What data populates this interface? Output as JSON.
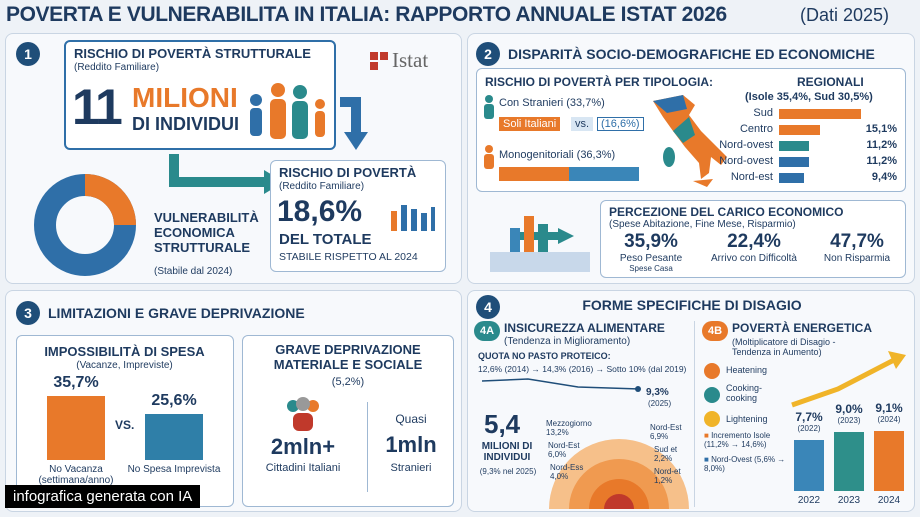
{
  "header": {
    "title": "POVERTA E VULNERABILITA IN ITALIA: RAPPORTO ANNUALE ISTAT 2026",
    "subtitle": "(Dati 2025)"
  },
  "section1": {
    "number": "1",
    "title": "RISCHIO DI POVERTÀ STRUTTURALE",
    "subtitle": "(Reddito Familiare)",
    "big_number": "11",
    "big_unit": "MILIONI",
    "big_caption": "DI INDIVIDUI",
    "logo": "Istat",
    "card": {
      "title": "RISCHIO DI POVERTÀ",
      "subtitle": "(Reddito Familiare)",
      "value": "18,6%",
      "caption": "DEL TOTALE",
      "note": "STABILE RISPETTO AL 2024"
    },
    "donut": {
      "lines": [
        "VULNERABILITÀ",
        "ECONOMICA",
        "STRUTTURALE"
      ],
      "note": "(Stabile dal 2024)"
    }
  },
  "section2": {
    "number": "2",
    "title": "DISPARITÀ SOCIO-DEMOGRAFICHE ED ECONOMICHE",
    "typology": {
      "title": "RISCHIO DI POVERTÀ PER TIPOLOGIA:",
      "stranieri": "Con Stranieri (33,7%)",
      "italiani": "Soli Italiani",
      "vs": "vs.",
      "italiani_value": "(16,6%)",
      "monogenitoriali": "Monogenitoriali (36,3%)"
    },
    "regional": {
      "title": "REGIONALI",
      "subtitle": "(Isole 35,4%, Sud 30,5%)",
      "categories": [
        "Sud",
        "Centro",
        "Nord-ovest",
        "Nord-ovest",
        "Nord-est"
      ],
      "values": [
        30.5,
        15.1,
        11.2,
        11.2,
        9.4
      ],
      "value_labels": [
        null,
        "15,1%",
        "11,2%",
        "11,2%",
        "9,4%"
      ],
      "colors": [
        "#e8792a",
        "#e8792a",
        "#2a8a8c",
        "#2f6fa8",
        "#2f6fa8"
      ]
    },
    "perception": {
      "title": "PERCEZIONE DEL CARICO ECONOMICO",
      "subtitle": "(Spese Abitazione, Fine Mese, Risparmio)",
      "items": [
        {
          "value": "35,9%",
          "label": "Peso Pesante",
          "note": "Spese Casa"
        },
        {
          "value": "22,4%",
          "label": "Arrivo con Difficoltà"
        },
        {
          "value": "47,7%",
          "label": "Non Risparmia"
        }
      ]
    }
  },
  "section3": {
    "number": "3",
    "title": "LIMITAZIONI E GRAVE DEPRIVAZIONE",
    "spending": {
      "title": "IMPOSSIBILITÀ DI SPESA",
      "subtitle": "(Vacanze, Impreviste)",
      "categories": [
        "No Vacanza (settimana/anno)",
        "No Spesa Imprevista"
      ],
      "values": [
        35.7,
        25.6
      ],
      "value_labels": [
        "35,7%",
        "25,6%"
      ],
      "colors": [
        "#e8792a",
        "#2f7fa8"
      ],
      "vs": "VS."
    },
    "deprivation": {
      "title": "GRAVE DEPRIVAZIONE MATERIALE E SOCIALE",
      "value": "(5,2%)",
      "italians_value": "2mln+",
      "italians_label": "Cittadini Italiani",
      "foreigners_prefix": "Quasi",
      "foreigners_value": "1mln",
      "foreigners_label": "Stranieri"
    }
  },
  "section4": {
    "number": "4",
    "title": "FORME SPECIFICHE DI DISAGIO",
    "food": {
      "number": "4A",
      "title": "INSICUREZZA ALIMENTARE",
      "subtitle": "(Tendenza in Miglioramento)",
      "quota_title": "QUOTA NO PASTO PROTEICO:",
      "trend": "12,6% (2014) → 14,3% (2016) → Sotto 10% (dal 2019)",
      "latest_value": "9,3%",
      "latest_year": "(2025)",
      "big_value": "5,4",
      "big_unit": "MILIONI DI INDIVIDUI",
      "big_note": "(9,3% nel 2025)",
      "areas": [
        {
          "name": "Mezzogiorno",
          "value": "13,2%"
        },
        {
          "name": "Nord-Est",
          "value": "6,0%"
        },
        {
          "name": "Nord-Ess",
          "value": "4,0%"
        },
        {
          "name": "Nord-Est",
          "value": "6,9%"
        },
        {
          "name": "Sud et",
          "value": "2,2%"
        },
        {
          "name": "Nord-et",
          "value": "1,2%"
        }
      ]
    },
    "energy": {
      "number": "4B",
      "title": "POVERTÀ ENERGETICA",
      "subtitle": "(Moltiplicatore di Disagio - Tendenza in Aumento)",
      "uses": [
        "Heatening",
        "Cooking-cooking",
        "Lightening"
      ],
      "notes": [
        "Incremento Isole (11,2% → 14,6%)",
        "Nord-Ovest (5,6% → 8,0%)"
      ],
      "categories": [
        "2022",
        "2023",
        "2024"
      ],
      "values": [
        7.7,
        9.0,
        9.1
      ],
      "value_labels": [
        "7,7%",
        "9,0%",
        "9,1%"
      ],
      "value_years": [
        "(2022)",
        "(2023)",
        "(2024)"
      ],
      "colors": [
        "#3a86b8",
        "#2e8f8a",
        "#e8792a"
      ]
    }
  },
  "footer": "infografica generata con IA"
}
